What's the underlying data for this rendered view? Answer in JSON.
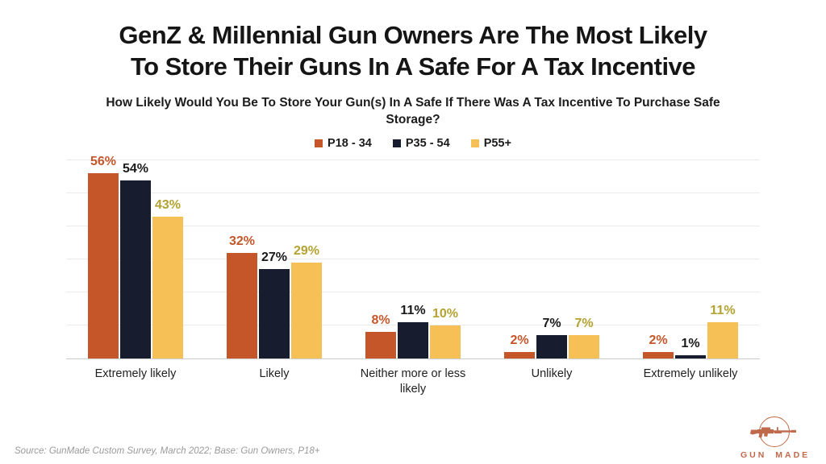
{
  "chart_data": {
    "type": "bar",
    "title": "GenZ & Millennial Gun Owners Are The Most Likely To Store Their Guns In A Safe For A Tax Incentive",
    "title_lines": [
      "GenZ & Millennial Gun Owners Are The Most Likely",
      "To Store Their Guns In A Safe For A Tax Incentive"
    ],
    "subtitle": "How Likely Would You Be To Store Your Gun(s) In A Safe If There Was A Tax Incentive To Purchase Safe Storage?",
    "subtitle_lines": [
      "How Likely Would You Be To Store Your Gun(s) In A Safe If There Was A Tax Incentive To Purchase Safe",
      "Storage?"
    ],
    "categories": [
      "Extremely likely",
      "Likely",
      "Neither more or less likely",
      "Unlikely",
      "Extremely unlikely"
    ],
    "series": [
      {
        "name": "P18 - 34",
        "color": "#c4562a",
        "label_color": "#c4562a",
        "values": [
          56,
          32,
          8,
          2,
          2
        ]
      },
      {
        "name": "P35 - 54",
        "color": "#171d2e",
        "label_color": "#1a1a1a",
        "values": [
          54,
          27,
          11,
          7,
          1
        ]
      },
      {
        "name": "P55+",
        "color": "#f7c057",
        "label_color": "#b4a231",
        "values": [
          43,
          29,
          10,
          7,
          11
        ]
      }
    ],
    "value_suffix": "%",
    "ylim": [
      0,
      60
    ],
    "grid_step": 10,
    "grid": "horizontal",
    "legend_position": "top",
    "xlabel": "",
    "ylabel": ""
  },
  "footer": {
    "source": "Source: GunMade Custom Survey, March 2022; Base: Gun Owners, P18+",
    "logo_text": "GUN MADE",
    "logo_color": "#c06a4c"
  }
}
